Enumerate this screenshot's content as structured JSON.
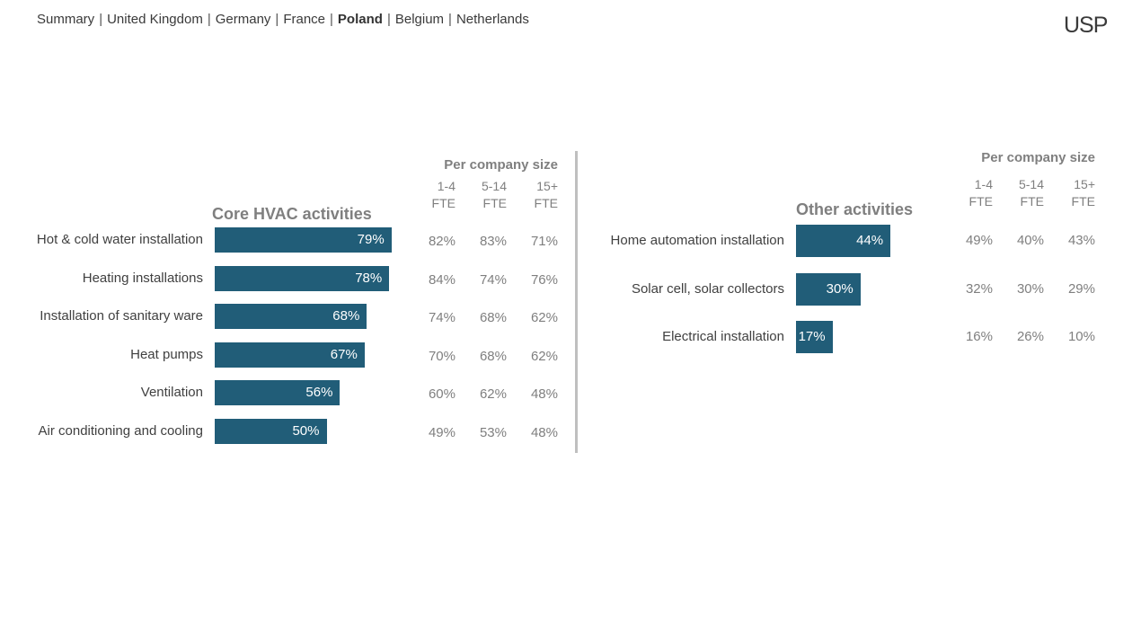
{
  "nav": {
    "items": [
      "Summary",
      "United Kingdom",
      "Germany",
      "France",
      "Poland",
      "Belgium",
      "Netherlands"
    ],
    "active": "Poland"
  },
  "logo": {
    "text": "USP"
  },
  "colors": {
    "bar": "#215d78",
    "muted_text": "#7f7f7f",
    "divider": "#bfbfbf"
  },
  "chart_data": [
    {
      "type": "bar",
      "orientation": "horizontal",
      "title": "Core HVAC activities",
      "table_title": "Per company size",
      "size_columns": [
        "1-4\nFTE",
        "5-14\nFTE",
        "15+\nFTE"
      ],
      "categories": [
        "Hot & cold water installation",
        "Heating installations",
        "Installation of sanitary ware",
        "Heat pumps",
        "Ventilation",
        "Air conditioning and cooling"
      ],
      "values": [
        79,
        78,
        68,
        67,
        56,
        50
      ],
      "value_labels": [
        "79%",
        "78%",
        "68%",
        "67%",
        "56%",
        "50%"
      ],
      "size_breakdown": [
        [
          "82%",
          "83%",
          "71%"
        ],
        [
          "84%",
          "74%",
          "76%"
        ],
        [
          "74%",
          "68%",
          "62%"
        ],
        [
          "70%",
          "68%",
          "62%"
        ],
        [
          "60%",
          "62%",
          "48%"
        ],
        [
          "49%",
          "53%",
          "48%"
        ]
      ],
      "xlim": [
        0,
        100
      ]
    },
    {
      "type": "bar",
      "orientation": "horizontal",
      "title": "Other activities",
      "table_title": "Per company size",
      "size_columns": [
        "1-4\nFTE",
        "5-14\nFTE",
        "15+\nFTE"
      ],
      "categories": [
        "Home automation installation",
        "Solar cell, solar collectors",
        "Electrical installation"
      ],
      "values": [
        44,
        30,
        17
      ],
      "value_labels": [
        "44%",
        "30%",
        "17%"
      ],
      "size_breakdown": [
        [
          "49%",
          "40%",
          "43%"
        ],
        [
          "32%",
          "30%",
          "29%"
        ],
        [
          "16%",
          "26%",
          "10%"
        ]
      ],
      "xlim": [
        0,
        100
      ]
    }
  ]
}
